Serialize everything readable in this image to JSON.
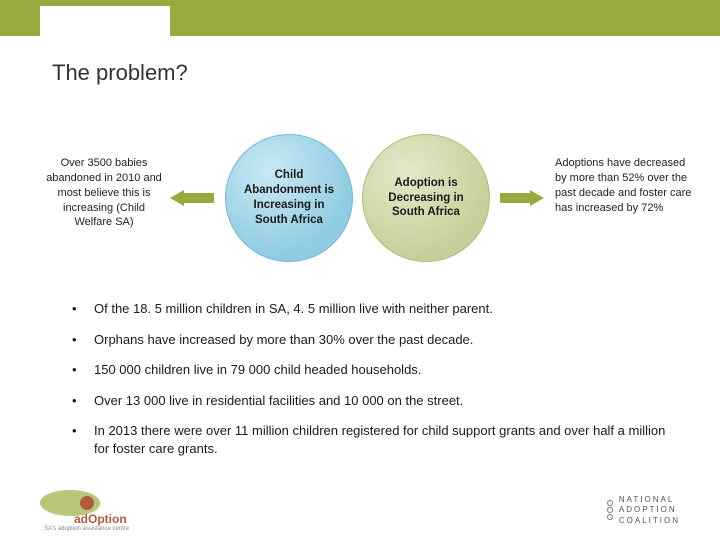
{
  "colors": {
    "accent_bar": "#97a93f",
    "circle_left_fill": "#8fcbe2",
    "circle_left_border": "#77b7d2",
    "circle_right_fill": "#c6cf9a",
    "circle_right_border": "#b0ba7e",
    "arrow_fill": "#97a93f",
    "text": "#1a1a1a",
    "background": "#ffffff"
  },
  "title": "The problem?",
  "diagram": {
    "left_caption": "Over 3500 babies abandoned in 2010 and most believe this is increasing (Child Welfare SA)",
    "circle_left_text": "Child Abandonment is Increasing in South Africa",
    "circle_right_text": "Adoption is Decreasing in South Africa",
    "right_caption": "Adoptions have decreased by more than 52% over the past decade and foster care has increased by 72%"
  },
  "bullets": [
    "Of the 18. 5 million children in SA, 4. 5 million live with neither parent.",
    "Orphans have increased by more than 30% over the past decade.",
    "150 000 children live in 79 000 child headed households.",
    "Over 13 000 live in residential facilities and 10 000 on the street.",
    "In 2013 there were over 11 million children registered for child support grants and over half a million for foster care grants."
  ],
  "footer": {
    "left_logo_text": "adOption",
    "left_logo_sub": "SA's adoption assistance centre",
    "right_logo_l1": "NATIONAL",
    "right_logo_l2": "ADOPTION",
    "right_logo_l3": "COALITION"
  }
}
